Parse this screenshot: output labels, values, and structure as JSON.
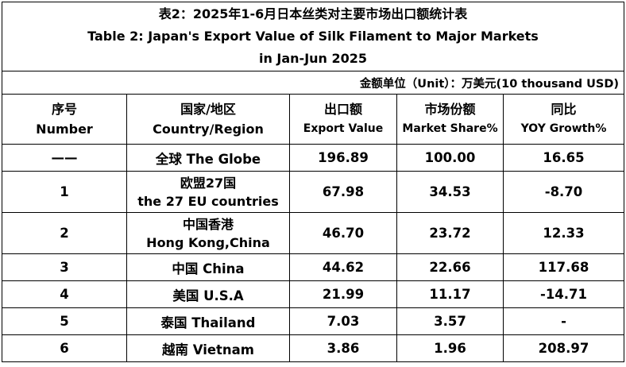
{
  "title": {
    "zh": "表2：2025年1-6月日本丝类对主要市场出口额统计表",
    "en_line1": "Table 2: Japan's Export Value of Silk Filament to Major Markets",
    "en_line2": "in Jan-Jun 2025"
  },
  "unit": "金额单位（Unit）：万美元(10 thousand USD)",
  "headers": [
    {
      "zh": "序号",
      "en": "Number"
    },
    {
      "zh": "国家/地区",
      "en": "Country/Region"
    },
    {
      "zh": "出口额",
      "en": "Export Value"
    },
    {
      "zh": "市场份额",
      "en": "Market Share%"
    },
    {
      "zh": "同比",
      "en": "YOY Growth%"
    }
  ],
  "rows": [
    {
      "number": "——",
      "country": [
        "全球  The Globe"
      ],
      "export": "196.89",
      "share": "100.00",
      "yoy": "16.65"
    },
    {
      "number": "1",
      "country": [
        "欧盟27国",
        "the 27 EU countries"
      ],
      "export": "67.98",
      "share": "34.53",
      "yoy": "-8.70"
    },
    {
      "number": "2",
      "country": [
        "中国香港",
        "Hong Kong,China"
      ],
      "export": "46.70",
      "share": "23.72",
      "yoy": "12.33"
    },
    {
      "number": "3",
      "country": [
        "中国 China"
      ],
      "export": "44.62",
      "share": "22.66",
      "yoy": "117.68"
    },
    {
      "number": "4",
      "country": [
        "美国 U.S.A"
      ],
      "export": "21.99",
      "share": "11.17",
      "yoy": "-14.71"
    },
    {
      "number": "5",
      "country": [
        "泰国 Thailand"
      ],
      "export": "7.03",
      "share": "3.57",
      "yoy": "-"
    },
    {
      "number": "6",
      "country": [
        "越南 Vietnam"
      ],
      "export": "3.86",
      "share": "1.96",
      "yoy": "208.97"
    }
  ]
}
